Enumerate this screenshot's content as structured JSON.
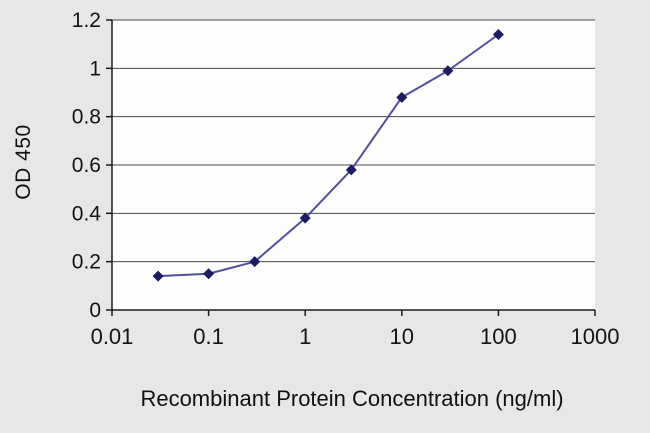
{
  "figure": {
    "background": "#e7e7e6",
    "plot_background": "#fdfdfc",
    "axis_color": "#1c1c1c",
    "grid_color": "#4a4a4a",
    "text_color": "#141414"
  },
  "chart_data": {
    "type": "line",
    "title": "",
    "xlabel": "Recombinant Protein Concentration (ng/ml)",
    "ylabel": "OD 450",
    "x_scale": "log",
    "xlim": [
      0.01,
      1000
    ],
    "ylim": [
      0,
      1.2
    ],
    "x_ticks": [
      0.01,
      0.1,
      1,
      10,
      100,
      1000
    ],
    "x_tick_labels": [
      "0.01",
      "0.1",
      "1",
      "10",
      "100",
      "1000"
    ],
    "y_ticks": [
      0,
      0.2,
      0.4,
      0.6,
      0.8,
      1,
      1.2
    ],
    "y_tick_labels": [
      "0",
      "0.2",
      "0.4",
      "0.6",
      "0.8",
      "1",
      "1.2"
    ],
    "grid": "horizontal",
    "legend": "none",
    "series": [
      {
        "name": "OD 450",
        "marker": "diamond",
        "line_color": "#50509e",
        "marker_color": "#1b1b66",
        "x": [
          0.03,
          0.1,
          0.3,
          1,
          3,
          10,
          30,
          100
        ],
        "y": [
          0.14,
          0.15,
          0.2,
          0.38,
          0.58,
          0.88,
          0.99,
          1.14
        ]
      }
    ]
  }
}
